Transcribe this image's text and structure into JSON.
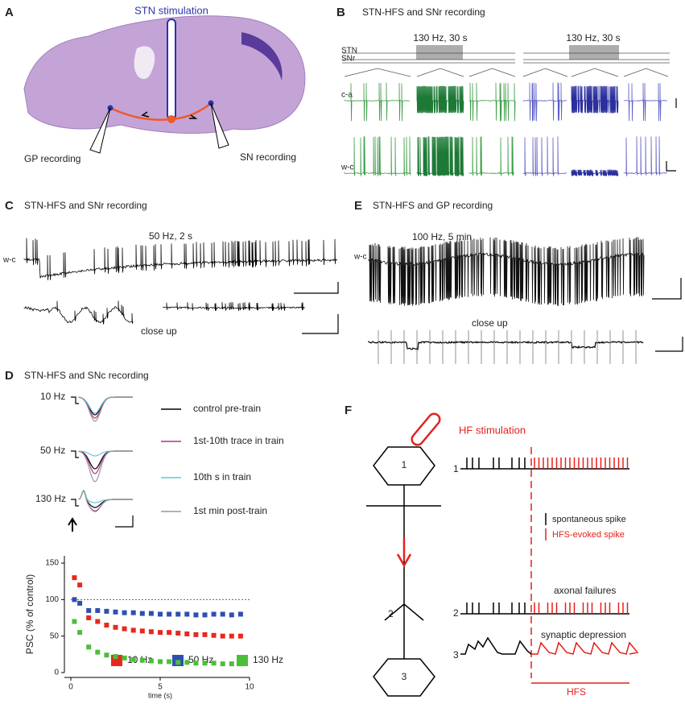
{
  "figure": {
    "a": {
      "label": "A",
      "stimulation": "STN stimulation",
      "gp": "GP recording",
      "sn": "SN recording"
    },
    "b": {
      "label": "B",
      "title": "STN-HFS and SNr recording",
      "protocol_left": "130 Hz, 30 s",
      "protocol_right": "130 Hz, 30 s",
      "row_stn": "STN",
      "row_snr": "SNr",
      "row_ca": "c-a",
      "row_wc": "w-c"
    },
    "c": {
      "label": "C",
      "title": "STN-HFS and SNr recording",
      "protocol": "50 Hz, 2 s",
      "row_wc": "w-c",
      "close_up": "close up"
    },
    "e": {
      "label": "E",
      "title": "STN-HFS and GP recording",
      "protocol": "100 Hz, 5 min",
      "row_wc": "w-c",
      "close_up": "close up"
    },
    "d": {
      "label": "D",
      "title": "STN-HFS and SNc recording",
      "inset_labels": [
        "10 Hz",
        "50 Hz",
        "130 Hz"
      ],
      "legend": [
        {
          "name": "control pre-train",
          "color": "#000000"
        },
        {
          "name": "1st-10th trace in train",
          "color": "#b0328c"
        },
        {
          "name": "10th s in train",
          "color": "#5bc8d8"
        },
        {
          "name": "1st min post-train",
          "color": "#999999"
        }
      ]
    },
    "f": {
      "label": "F",
      "stimulation": "HF stimulation",
      "neuron_1": "1",
      "neuron_2": "2",
      "neuron_3": "3",
      "rows": [
        "1",
        "2",
        "3"
      ],
      "spontaneous": "spontaneous spike",
      "evoked": "HFS-evoked spike",
      "axonal": "axonal failures",
      "synaptic": "synaptic depression",
      "hfs": "HFS"
    }
  },
  "chart_data": {
    "type": "scatter",
    "xlabel": "time (s)",
    "ylabel": "PSC (% of control)",
    "xlim": [
      0,
      10
    ],
    "ylim": [
      0,
      160
    ],
    "xticks": [
      0,
      5,
      10
    ],
    "yticks": [
      0,
      50,
      100,
      150
    ],
    "reference_line": 100,
    "x": [
      0.2,
      0.5,
      1,
      1.5,
      2,
      2.5,
      3,
      3.5,
      4,
      4.5,
      5,
      5.5,
      6,
      6.5,
      7,
      7.5,
      8,
      8.5,
      9,
      9.5
    ],
    "series": [
      {
        "name": "10 Hz",
        "color": "#e8281e",
        "values": [
          130,
          120,
          75,
          70,
          65,
          62,
          60,
          58,
          57,
          56,
          55,
          55,
          54,
          53,
          52,
          52,
          51,
          50,
          50,
          50
        ]
      },
      {
        "name": "50 Hz",
        "color": "#2f4fb0",
        "values": [
          100,
          95,
          85,
          85,
          84,
          83,
          82,
          82,
          81,
          81,
          80,
          80,
          80,
          80,
          79,
          79,
          80,
          80,
          79,
          80
        ]
      },
      {
        "name": "130 Hz",
        "color": "#4cbf3a",
        "values": [
          70,
          55,
          35,
          28,
          24,
          22,
          20,
          18,
          17,
          16,
          15,
          15,
          14,
          14,
          13,
          13,
          13,
          12,
          12,
          12
        ]
      }
    ]
  }
}
